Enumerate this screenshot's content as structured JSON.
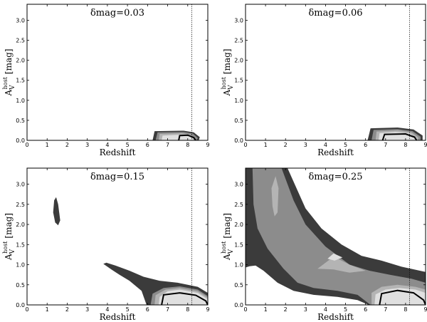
{
  "chart_data": [
    {
      "type": "contour",
      "annotation": "δmag=0.03",
      "xlabel": "Redshift",
      "ylabel": "A_V^host [mag]",
      "xlim": [
        0,
        9
      ],
      "ylim": [
        0,
        3.4
      ],
      "xticks": [
        "0",
        "1",
        "2",
        "3",
        "4",
        "5",
        "6",
        "7",
        "8",
        "9"
      ],
      "yticks": [
        "0.0",
        "0.5",
        "1.0",
        "1.5",
        "2.0",
        "2.5",
        "3.0"
      ],
      "reference_line_x": 8.2,
      "colors": {
        "level1": "#3b3b3b",
        "level2": "#8c8c8c",
        "level3": "#b4b4b4",
        "level4": "#e0e0e0",
        "contour": "#000000"
      },
      "regions": [
        {
          "level": 1,
          "points": [
            [
              6.25,
              0
            ],
            [
              6.35,
              0.23
            ],
            [
              7.8,
              0.24
            ],
            [
              8.3,
              0.2
            ],
            [
              8.6,
              0.08
            ],
            [
              8.55,
              0
            ]
          ]
        },
        {
          "level": 2,
          "points": [
            [
              6.4,
              0
            ],
            [
              6.5,
              0.2
            ],
            [
              7.8,
              0.21
            ],
            [
              8.25,
              0.17
            ],
            [
              8.5,
              0.06
            ],
            [
              8.45,
              0
            ]
          ]
        },
        {
          "level": 3,
          "points": [
            [
              6.55,
              0
            ],
            [
              6.6,
              0.16
            ],
            [
              7.7,
              0.18
            ],
            [
              8.15,
              0.14
            ],
            [
              8.4,
              0.04
            ],
            [
              8.35,
              0
            ]
          ]
        },
        {
          "level": 4,
          "points": [
            [
              6.7,
              0
            ],
            [
              6.75,
              0.12
            ],
            [
              7.6,
              0.14
            ],
            [
              8.05,
              0.11
            ],
            [
              8.3,
              0.03
            ],
            [
              8.25,
              0
            ]
          ]
        }
      ],
      "contour": [
        [
          7.55,
          0
        ],
        [
          7.6,
          0.12
        ],
        [
          8.0,
          0.13
        ],
        [
          8.3,
          0.07
        ],
        [
          8.4,
          0
        ]
      ]
    },
    {
      "type": "contour",
      "annotation": "δmag=0.06",
      "xlabel": "Redshift",
      "ylabel": "A_V^host [mag]",
      "xlim": [
        0,
        9
      ],
      "ylim": [
        0,
        3.4
      ],
      "xticks": [
        "0",
        "1",
        "2",
        "3",
        "4",
        "5",
        "6",
        "7",
        "8",
        "9"
      ],
      "yticks": [
        "0.0",
        "0.5",
        "1.0",
        "1.5",
        "2.0",
        "2.5",
        "3.0"
      ],
      "reference_line_x": 8.2,
      "colors": {
        "level1": "#3b3b3b",
        "level2": "#8c8c8c",
        "level3": "#b4b4b4",
        "level4": "#e0e0e0",
        "contour": "#000000"
      },
      "regions": [
        {
          "level": 1,
          "points": [
            [
              6.1,
              0
            ],
            [
              6.25,
              0.3
            ],
            [
              7.6,
              0.32
            ],
            [
              8.4,
              0.27
            ],
            [
              8.85,
              0.12
            ],
            [
              8.85,
              0
            ]
          ]
        },
        {
          "level": 2,
          "points": [
            [
              6.3,
              0
            ],
            [
              6.4,
              0.26
            ],
            [
              7.6,
              0.28
            ],
            [
              8.35,
              0.23
            ],
            [
              8.75,
              0.09
            ],
            [
              8.75,
              0
            ]
          ]
        },
        {
          "level": 3,
          "points": [
            [
              6.5,
              0
            ],
            [
              6.55,
              0.22
            ],
            [
              7.6,
              0.25
            ],
            [
              8.3,
              0.2
            ],
            [
              8.65,
              0.07
            ],
            [
              8.6,
              0
            ]
          ]
        },
        {
          "level": 4,
          "points": [
            [
              6.65,
              0
            ],
            [
              6.7,
              0.18
            ],
            [
              7.5,
              0.21
            ],
            [
              8.2,
              0.17
            ],
            [
              8.55,
              0.05
            ],
            [
              8.5,
              0
            ]
          ]
        }
      ],
      "contour": [
        [
          6.85,
          0
        ],
        [
          6.95,
          0.15
        ],
        [
          8.0,
          0.16
        ],
        [
          8.45,
          0.08
        ],
        [
          8.55,
          0
        ]
      ]
    },
    {
      "type": "contour",
      "annotation": "δmag=0.15",
      "xlabel": "Redshift",
      "ylabel": "A_V^host [mag]",
      "xlim": [
        0,
        9
      ],
      "ylim": [
        0,
        3.4
      ],
      "xticks": [
        "0",
        "1",
        "2",
        "3",
        "4",
        "5",
        "6",
        "7",
        "8",
        "9"
      ],
      "yticks": [
        "0.0",
        "0.5",
        "1.0",
        "1.5",
        "2.0",
        "2.5",
        "3.0"
      ],
      "reference_line_x": 8.2,
      "colors": {
        "level1": "#3b3b3b",
        "level2": "#8c8c8c",
        "level3": "#b4b4b4",
        "level4": "#e0e0e0",
        "contour": "#000000"
      },
      "regions": [
        {
          "level": 1,
          "points": [
            [
              1.3,
              2.3
            ],
            [
              1.35,
              2.6
            ],
            [
              1.45,
              2.68
            ],
            [
              1.55,
              2.5
            ],
            [
              1.65,
              2.1
            ],
            [
              1.55,
              1.98
            ],
            [
              1.4,
              2.05
            ]
          ]
        },
        {
          "level": 1,
          "points": [
            [
              5.95,
              0
            ],
            [
              5.7,
              0.35
            ],
            [
              5.1,
              0.6
            ],
            [
              4.6,
              0.75
            ],
            [
              4.2,
              0.88
            ],
            [
              3.8,
              1.02
            ],
            [
              3.95,
              1.05
            ],
            [
              4.4,
              0.98
            ],
            [
              5.1,
              0.85
            ],
            [
              5.8,
              0.7
            ],
            [
              6.6,
              0.6
            ],
            [
              7.5,
              0.55
            ],
            [
              8.5,
              0.45
            ],
            [
              9,
              0.3
            ],
            [
              9,
              0
            ]
          ]
        },
        {
          "level": 2,
          "points": [
            [
              6.15,
              0
            ],
            [
              6.25,
              0.28
            ],
            [
              6.8,
              0.42
            ],
            [
              7.6,
              0.46
            ],
            [
              8.5,
              0.38
            ],
            [
              9,
              0.22
            ],
            [
              9,
              0
            ]
          ]
        },
        {
          "level": 3,
          "points": [
            [
              6.35,
              0
            ],
            [
              6.4,
              0.24
            ],
            [
              6.9,
              0.38
            ],
            [
              7.6,
              0.42
            ],
            [
              8.5,
              0.34
            ],
            [
              9,
              0.18
            ],
            [
              9,
              0
            ]
          ]
        },
        {
          "level": 4,
          "points": [
            [
              6.55,
              0
            ],
            [
              6.6,
              0.2
            ],
            [
              7.0,
              0.34
            ],
            [
              7.6,
              0.38
            ],
            [
              8.5,
              0.3
            ],
            [
              9,
              0.14
            ],
            [
              9,
              0
            ]
          ]
        }
      ],
      "contour": [
        [
          6.7,
          0
        ],
        [
          6.8,
          0.25
        ],
        [
          7.6,
          0.3
        ],
        [
          8.4,
          0.24
        ],
        [
          8.9,
          0.1
        ],
        [
          9,
          0
        ]
      ]
    },
    {
      "type": "contour",
      "annotation": "δmag=0.25",
      "xlabel": "Redshift",
      "ylabel": "A_V^host [mag]",
      "xlim": [
        0,
        9
      ],
      "ylim": [
        0,
        3.4
      ],
      "xticks": [
        "0",
        "1",
        "2",
        "3",
        "4",
        "5",
        "6",
        "7",
        "8",
        "9"
      ],
      "yticks": [
        "0.0",
        "0.5",
        "1.0",
        "1.5",
        "2.0",
        "2.5",
        "3.0"
      ],
      "reference_line_x": 8.2,
      "colors": {
        "level1": "#3b3b3b",
        "level2": "#8c8c8c",
        "level3": "#b4b4b4",
        "level4": "#e0e0e0",
        "contour": "#000000"
      },
      "regions": [
        {
          "level": 1,
          "points": [
            [
              0,
              3.4
            ],
            [
              2.1,
              3.4
            ],
            [
              3.0,
              2.4
            ],
            [
              3.8,
              1.9
            ],
            [
              4.8,
              1.5
            ],
            [
              5.8,
              1.22
            ],
            [
              6.8,
              1.1
            ],
            [
              7.8,
              0.95
            ],
            [
              9,
              0.82
            ],
            [
              9,
              0
            ],
            [
              6.15,
              0
            ],
            [
              5.6,
              0.12
            ],
            [
              4.6,
              0.2
            ],
            [
              3.4,
              0.25
            ],
            [
              2.4,
              0.35
            ],
            [
              1.6,
              0.55
            ],
            [
              0.9,
              0.85
            ],
            [
              0.5,
              0.98
            ],
            [
              0.2,
              0.96
            ],
            [
              0,
              0.93
            ]
          ]
        },
        {
          "level": 2,
          "points": [
            [
              0.35,
              3.4
            ],
            [
              1.8,
              3.4
            ],
            [
              2.4,
              2.6
            ],
            [
              3.0,
              2.0
            ],
            [
              4.0,
              1.45
            ],
            [
              5.2,
              1.0
            ],
            [
              6.2,
              0.85
            ],
            [
              7.2,
              0.75
            ],
            [
              8.3,
              0.65
            ],
            [
              9,
              0.55
            ],
            [
              9,
              0
            ],
            [
              6.25,
              0
            ],
            [
              5.6,
              0.25
            ],
            [
              4.6,
              0.35
            ],
            [
              3.4,
              0.42
            ],
            [
              2.6,
              0.55
            ],
            [
              1.9,
              0.9
            ],
            [
              1.1,
              1.4
            ],
            [
              0.6,
              1.9
            ],
            [
              0.4,
              2.5
            ]
          ]
        },
        {
          "level": 3,
          "points": [
            [
              6.3,
              0
            ],
            [
              6.3,
              0.3
            ],
            [
              6.8,
              0.45
            ],
            [
              7.6,
              0.5
            ],
            [
              8.5,
              0.45
            ],
            [
              9,
              0.38
            ],
            [
              9,
              0
            ]
          ]
        },
        {
          "level": 3,
          "points": [
            [
              3.6,
              0.9
            ],
            [
              4.4,
              1.2
            ],
            [
              5.2,
              1.0
            ],
            [
              6.0,
              0.85
            ],
            [
              5.2,
              0.8
            ],
            [
              4.4,
              0.88
            ]
          ]
        },
        {
          "level": 3,
          "points": [
            [
              1.3,
              2.9
            ],
            [
              1.5,
              3.2
            ],
            [
              1.65,
              2.9
            ],
            [
              1.6,
              2.3
            ],
            [
              1.45,
              2.2
            ],
            [
              1.35,
              2.45
            ]
          ]
        },
        {
          "level": 4,
          "points": [
            [
              6.45,
              0
            ],
            [
              6.5,
              0.26
            ],
            [
              7.0,
              0.38
            ],
            [
              7.7,
              0.42
            ],
            [
              8.5,
              0.38
            ],
            [
              9,
              0.3
            ],
            [
              9,
              0
            ]
          ]
        },
        {
          "level": 4,
          "points": [
            [
              4.1,
              1.15
            ],
            [
              4.4,
              1.28
            ],
            [
              4.85,
              1.18
            ],
            [
              4.45,
              1.1
            ]
          ]
        }
      ],
      "contour": [
        [
          6.7,
          0
        ],
        [
          6.8,
          0.28
        ],
        [
          7.6,
          0.36
        ],
        [
          8.4,
          0.3
        ],
        [
          8.9,
          0.12
        ],
        [
          9,
          0
        ]
      ]
    }
  ]
}
